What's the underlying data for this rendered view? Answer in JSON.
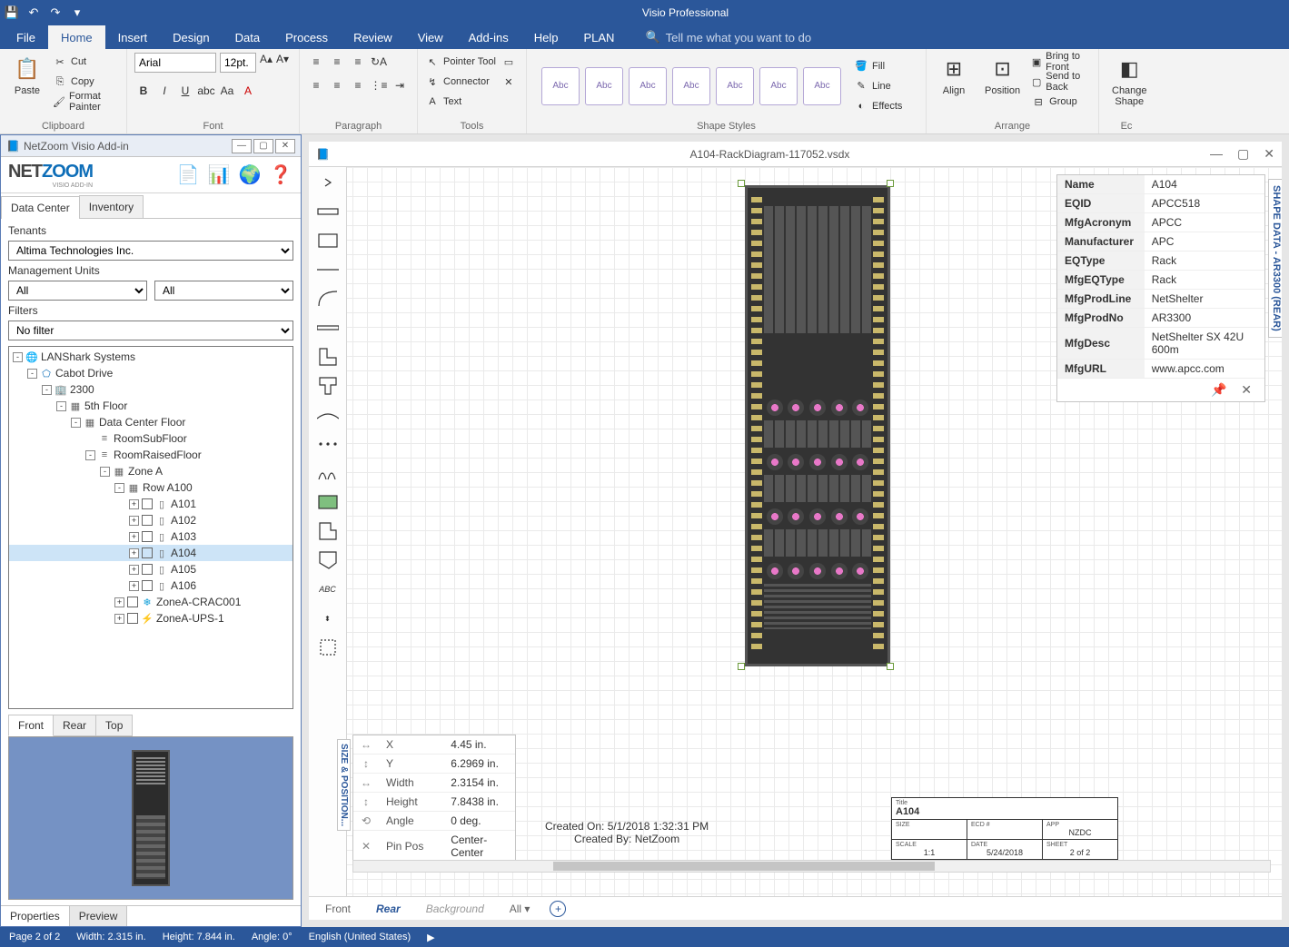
{
  "app": {
    "title": "Visio Professional"
  },
  "qat": [
    "save",
    "undo",
    "redo"
  ],
  "tabs": [
    "File",
    "Home",
    "Insert",
    "Design",
    "Data",
    "Process",
    "Review",
    "View",
    "Add-ins",
    "Help",
    "PLAN"
  ],
  "active_tab": "Home",
  "tell_me": "Tell me what you want to do",
  "ribbon": {
    "clipboard": {
      "paste": "Paste",
      "cut": "Cut",
      "copy": "Copy",
      "format_painter": "Format Painter",
      "label": "Clipboard"
    },
    "font": {
      "name": "Arial",
      "size": "12pt.",
      "label": "Font"
    },
    "paragraph": {
      "label": "Paragraph"
    },
    "tools": {
      "pointer": "Pointer Tool",
      "connector": "Connector",
      "text": "Text",
      "label": "Tools"
    },
    "shape_styles": {
      "sample": "Abc",
      "label": "Shape Styles",
      "fill": "Fill",
      "line": "Line",
      "effects": "Effects"
    },
    "arrange": {
      "align": "Align",
      "position": "Position",
      "bring_front": "Bring to Front",
      "send_back": "Send to Back",
      "group": "Group",
      "label": "Arrange"
    },
    "editing": {
      "change_shape": "Change Shape",
      "label": "Ec"
    }
  },
  "netzoom": {
    "title": "NetZoom Visio Add-in",
    "brand1": "NET",
    "brand2": "ZOOM",
    "brand_sub": "VISIO ADD-IN",
    "tabs": [
      "Data Center",
      "Inventory"
    ],
    "tenants_label": "Tenants",
    "tenant": "Altima Technologies Inc.",
    "mgmt_label": "Management Units",
    "mgmt1": "All",
    "mgmt2": "All",
    "filters_label": "Filters",
    "filter": "No filter",
    "tree": [
      {
        "d": 0,
        "tw": "-",
        "ico": "🌐",
        "txt": "LANShark Systems",
        "c": "#0e6eb8"
      },
      {
        "d": 1,
        "tw": "-",
        "ico": "⬠",
        "txt": "Cabot Drive",
        "c": "#0e6eb8"
      },
      {
        "d": 2,
        "tw": "-",
        "ico": "🏢",
        "txt": "2300",
        "c": "#0e6eb8"
      },
      {
        "d": 3,
        "tw": "-",
        "ico": "▦",
        "txt": "5th Floor"
      },
      {
        "d": 4,
        "tw": "-",
        "ico": "▦",
        "txt": "Data Center Floor"
      },
      {
        "d": 5,
        "tw": "",
        "ico": "≡",
        "txt": "RoomSubFloor"
      },
      {
        "d": 5,
        "tw": "-",
        "ico": "≡",
        "txt": "RoomRaisedFloor"
      },
      {
        "d": 6,
        "tw": "-",
        "ico": "▦",
        "txt": "Zone A"
      },
      {
        "d": 7,
        "tw": "-",
        "ico": "▦",
        "txt": "Row A100"
      },
      {
        "d": 8,
        "tw": "+",
        "ico": "▯",
        "chk": true,
        "txt": "A101"
      },
      {
        "d": 8,
        "tw": "+",
        "ico": "▯",
        "chk": true,
        "txt": "A102"
      },
      {
        "d": 8,
        "tw": "+",
        "ico": "▯",
        "chk": true,
        "txt": "A103"
      },
      {
        "d": 8,
        "tw": "+",
        "ico": "▯",
        "chk": true,
        "txt": "A104",
        "sel": true
      },
      {
        "d": 8,
        "tw": "+",
        "ico": "▯",
        "chk": true,
        "txt": "A105"
      },
      {
        "d": 8,
        "tw": "+",
        "ico": "▯",
        "chk": true,
        "txt": "A106"
      },
      {
        "d": 7,
        "tw": "+",
        "ico": "❄",
        "chk": true,
        "txt": "ZoneA-CRAC001",
        "c": "#0e9ed8"
      },
      {
        "d": 7,
        "tw": "+",
        "ico": "⚡",
        "chk": true,
        "txt": "ZoneA-UPS-1"
      }
    ],
    "preview_tabs": [
      "Front",
      "Rear",
      "Top"
    ],
    "bottom_tabs": [
      "Properties",
      "Preview"
    ]
  },
  "document": {
    "filename": "A104-RackDiagram-117052.vsdx",
    "created_on": "Created On: 5/1/2018 1:32:31 PM",
    "created_by": "Created By: NetZoom",
    "page_tabs": [
      "Front",
      "Rear",
      "Background",
      "All"
    ]
  },
  "shape_data": {
    "title": "SHAPE DATA - AR3300 (REAR)",
    "rows": [
      [
        "Name",
        "A104"
      ],
      [
        "EQID",
        "APCC518"
      ],
      [
        "MfgAcronym",
        "APCC"
      ],
      [
        "Manufacturer",
        "APC"
      ],
      [
        "EQType",
        "Rack"
      ],
      [
        "MfgEQType",
        "Rack"
      ],
      [
        "MfgProdLine",
        "NetShelter"
      ],
      [
        "MfgProdNo",
        "AR3300"
      ],
      [
        "MfgDesc",
        "NetShelter SX 42U 600m"
      ],
      [
        "MfgURL",
        "www.apcc.com"
      ]
    ]
  },
  "size_pos": {
    "title": "SIZE & POSITION...",
    "rows": [
      [
        "X",
        "4.45 in."
      ],
      [
        "Y",
        "6.2969 in."
      ],
      [
        "Width",
        "2.3154 in."
      ],
      [
        "Height",
        "7.8438 in."
      ],
      [
        "Angle",
        "0 deg."
      ],
      [
        "Pin Pos",
        "Center-Center"
      ]
    ]
  },
  "title_block": {
    "title_lbl": "Title",
    "title": "A104",
    "size_lbl": "SIZE",
    "ecd_lbl": "ECD #",
    "app_lbl": "APP",
    "app": "NZDC",
    "scale_lbl": "SCALE",
    "scale": "1:1",
    "date_lbl": "DATE",
    "date": "5/24/2018",
    "sheet_lbl": "SHEET",
    "sheet": "2 of 2"
  },
  "status": {
    "page": "Page 2 of 2",
    "width": "Width: 2.315 in.",
    "height": "Height: 7.844 in.",
    "angle": "Angle: 0°",
    "lang": "English (United States)"
  }
}
